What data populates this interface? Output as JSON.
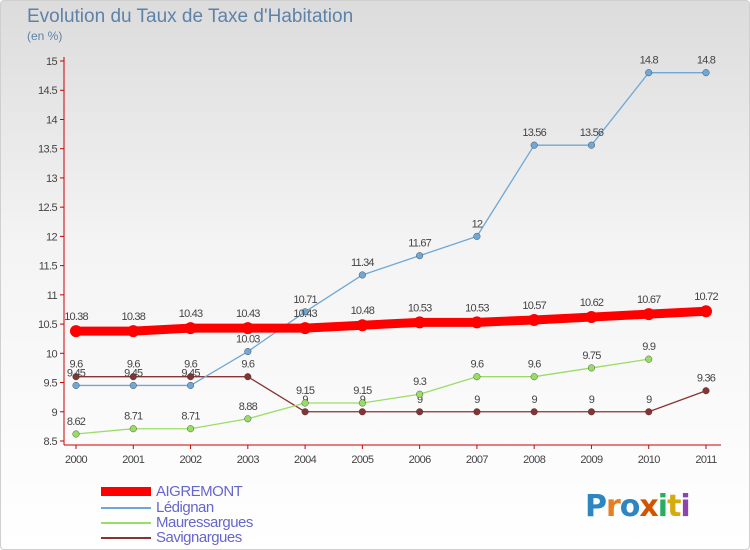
{
  "title": "Evolution du Taux de Taxe d'Habitation",
  "unit": "(en %)",
  "logo": {
    "text": "Proxiti",
    "colors": [
      "#2e86c1",
      "#e67e22",
      "#2e86c1",
      "#d35400",
      "#27ae60",
      "#d4ac0d",
      "#8e44ad"
    ]
  },
  "chart_data": {
    "type": "line",
    "title": "Evolution du Taux de Taxe d'Habitation",
    "ylabel": "(en %)",
    "xlabel": "",
    "x": [
      "2000",
      "2001",
      "2002",
      "2003",
      "2004",
      "2005",
      "2006",
      "2007",
      "2008",
      "2009",
      "2010",
      "2011"
    ],
    "ylim": [
      8.5,
      15
    ],
    "yticks": [
      "8.5",
      "9",
      "9.5",
      "10",
      "10.5",
      "11",
      "11.5",
      "12",
      "12.5",
      "13",
      "13.5",
      "14",
      "14.5",
      "15"
    ],
    "grid": false,
    "legend_position": "bottom-left",
    "series": [
      {
        "name": "AIGREMONT",
        "color": "#ff0000",
        "values": [
          10.38,
          10.38,
          10.43,
          10.43,
          10.43,
          10.48,
          10.53,
          10.53,
          10.57,
          10.62,
          10.67,
          10.72
        ],
        "labels": [
          "10.38",
          "10.38",
          "10.43",
          "10.43",
          "10.43",
          "10.48",
          "10.53",
          "10.53",
          "10.57",
          "10.62",
          "10.67",
          "10.72"
        ]
      },
      {
        "name": "Lédignan",
        "color": "#6fa8d6",
        "values": [
          9.45,
          9.45,
          9.45,
          10.03,
          10.71,
          11.34,
          11.67,
          12,
          13.56,
          13.56,
          14.8,
          14.8
        ],
        "labels": [
          "9.45",
          "9.45",
          "9.45",
          "10.03",
          "10.71",
          "11.34",
          "11.67",
          "12",
          "13.56",
          "13.56",
          "14.8",
          "14.8"
        ]
      },
      {
        "name": "Mauressargues",
        "color": "#99dd66",
        "values": [
          8.62,
          8.71,
          8.71,
          8.88,
          9.15,
          9.15,
          9.3,
          9.6,
          9.6,
          9.75,
          9.9,
          null
        ],
        "labels": [
          "8.62",
          "8.71",
          "8.71",
          "8.88",
          "9.15",
          "9.15",
          "9.3",
          "9.6",
          "9.6",
          "9.75",
          "9.9",
          ""
        ]
      },
      {
        "name": "Savignargues",
        "color": "#883333",
        "values": [
          9.6,
          9.6,
          9.6,
          9.6,
          9,
          9,
          9,
          9,
          9,
          9,
          9,
          9.36
        ],
        "labels": [
          "9.6",
          "9.6",
          "9.6",
          "9.6",
          "9",
          "9",
          "9",
          "9",
          "9",
          "9",
          "9",
          "9.36"
        ]
      }
    ]
  }
}
